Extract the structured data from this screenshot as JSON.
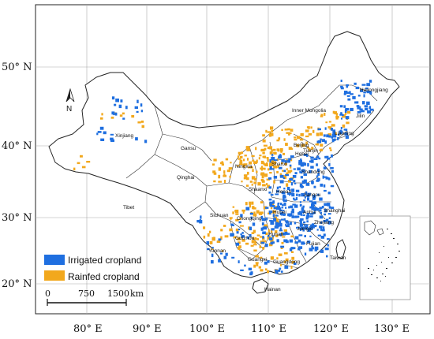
{
  "map": {
    "lat_labels": [
      "50° N",
      "40° N",
      "30° N",
      "20° N"
    ],
    "lon_labels": [
      "80° E",
      "90° E",
      "100° E",
      "110° E",
      "120° E",
      "130° E"
    ],
    "north_arrow": "N",
    "provinces": {
      "xinjiang": "Xinjiang",
      "tibet": "Tibet",
      "qinghai": "Qinghai",
      "gansu": "Gansu",
      "sichuan": "Sichuan",
      "yunnan": "Yunnan",
      "guizhou": "Guizhou",
      "guangxi": "Guangxi",
      "guangdong": "Guangdong",
      "hainan": "Hainan",
      "chongqing": "Chongqing",
      "shaanxi": "Shaanxi",
      "ningxia": "Ningxia",
      "shanxi": "Shanxi",
      "hebei": "Hebei",
      "henan": "Henan",
      "hubei": "Hubei",
      "hunan": "Hunan",
      "jiangxi": "Jiangxi",
      "fujian": "Fujian",
      "taiwan": "Taiwan",
      "zhejiang": "Zhejiang",
      "shanghai": "Shanghai",
      "anhui": "Anhui",
      "jiangsu": "Jiangsu",
      "shandong": "Shandong",
      "tianjin": "Tianjin",
      "beijing": "Beijing",
      "liaoning": "Liaoning",
      "jilin": "Jilin",
      "heilongjiang": "Heilongjiang",
      "inner_mongolia": "Inner Mongolia"
    },
    "legend": {
      "irrigated_label": "Irrigated cropland",
      "irrigated_color": "#1f6fe0",
      "rainfed_label": "Rainfed cropland",
      "rainfed_color": "#f2a81d"
    },
    "scale_bar": {
      "labels": [
        "0",
        "750",
        "1500"
      ],
      "unit": "km"
    }
  }
}
